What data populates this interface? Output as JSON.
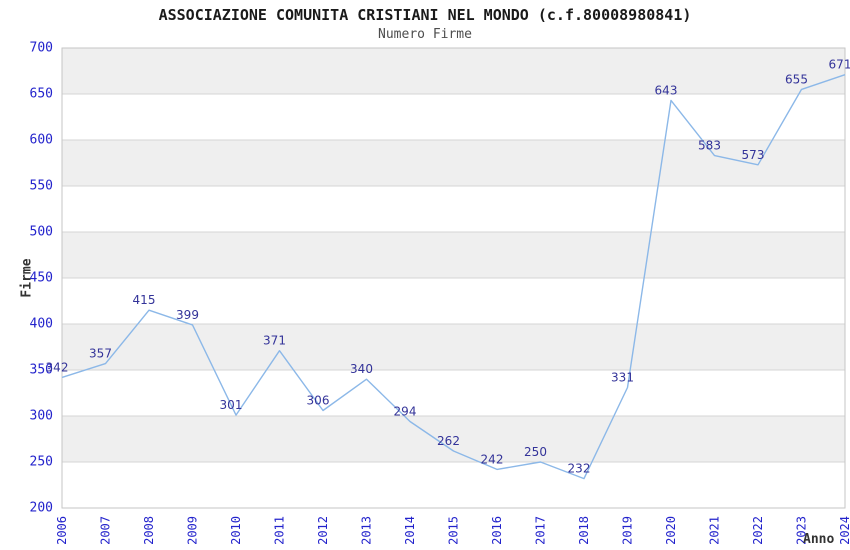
{
  "chart_data": {
    "type": "line",
    "title": "ASSOCIAZIONE COMUNITA CRISTIANI NEL MONDO (c.f.80008980841)",
    "subtitle": "Numero Firme",
    "xlabel": "Anno",
    "ylabel": "Firme",
    "x": [
      2006,
      2007,
      2008,
      2009,
      2010,
      2011,
      2012,
      2013,
      2014,
      2015,
      2016,
      2017,
      2018,
      2019,
      2020,
      2021,
      2022,
      2023,
      2024
    ],
    "series": [
      {
        "name": "Numero Firme",
        "values": [
          342,
          357,
          415,
          399,
          301,
          371,
          306,
          340,
          294,
          262,
          242,
          250,
          232,
          331,
          643,
          583,
          573,
          655,
          671
        ]
      }
    ],
    "ylim": [
      200,
      700
    ],
    "ytick_step": 50,
    "point_labels": true,
    "legend": "none",
    "grid": "horizontal gridlines every 50 with alternating gray bands every 100",
    "colors": {
      "line": "#8cb8e8",
      "tick_label": "#2323cc",
      "data_label": "#333399",
      "band": "#efefef",
      "gridline": "#d6d6d6",
      "plot_border": "#c6c6c6",
      "title": "#1a1a1a",
      "subtitle": "#4d4d4d",
      "axis_title": "#333333"
    }
  }
}
